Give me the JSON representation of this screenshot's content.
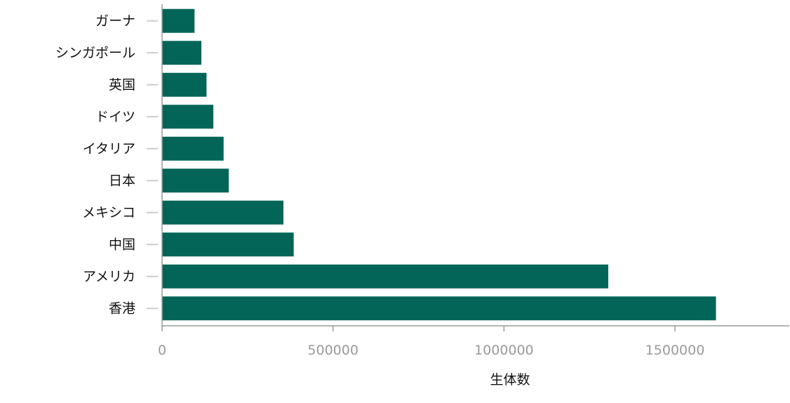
{
  "chart_data": {
    "type": "bar",
    "orientation": "horizontal",
    "categories": [
      "ガーナ",
      "シンガポール",
      "英国",
      "ドイツ",
      "イタリア",
      "日本",
      "メキシコ",
      "中国",
      "アメリカ",
      "香港"
    ],
    "values": [
      95000,
      115000,
      130000,
      150000,
      180000,
      195000,
      355000,
      385000,
      1305000,
      1620000
    ],
    "xlabel": "生体数",
    "ylabel": "",
    "title": "",
    "xlim": [
      0,
      1850000
    ],
    "xticks": [
      0,
      500000,
      1000000,
      1500000
    ],
    "xtick_labels": [
      "0",
      "500000",
      "1000000",
      "1500000"
    ],
    "grid": false,
    "bar_color": "#026558",
    "axis_color": "#9a9a9a",
    "tick_mark_color": "#cccccc"
  }
}
